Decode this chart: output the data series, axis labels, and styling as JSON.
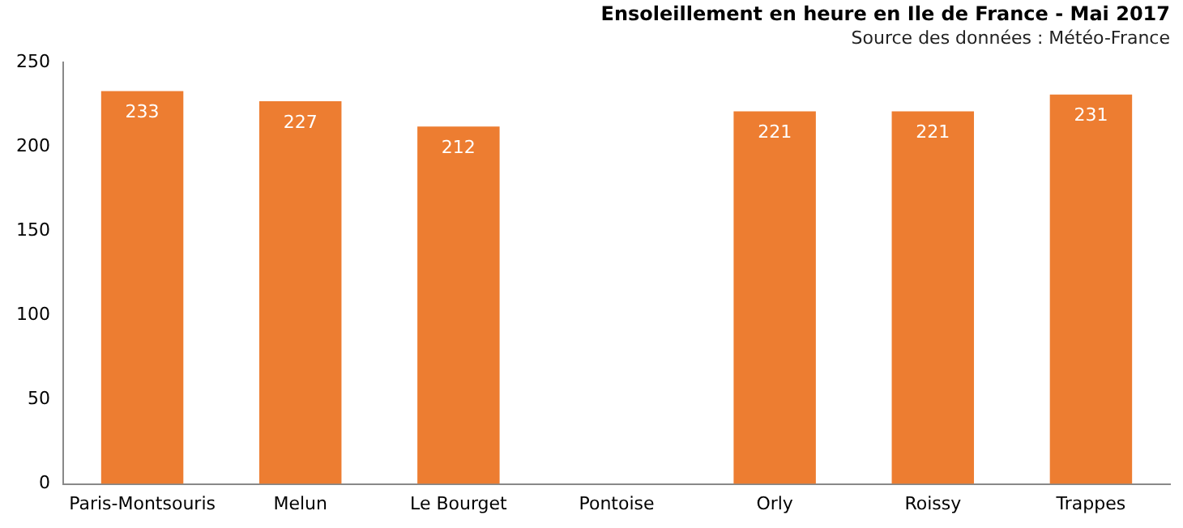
{
  "chart_data": {
    "type": "bar",
    "title": "Ensoleillement en heure en Ile de France - Mai 2017",
    "subtitle": "Source des données : Météo-France",
    "categories": [
      "Paris-Montsouris",
      "Melun",
      "Le Bourget",
      "Pontoise",
      "Orly",
      "Roissy",
      "Trappes"
    ],
    "values": [
      233,
      227,
      212,
      null,
      221,
      221,
      231
    ],
    "color": "#ed7d31",
    "ylim": [
      0,
      250
    ],
    "yticks": [
      0,
      50,
      100,
      150,
      200,
      250
    ],
    "grid": false,
    "legend": false,
    "data_labels": true
  }
}
